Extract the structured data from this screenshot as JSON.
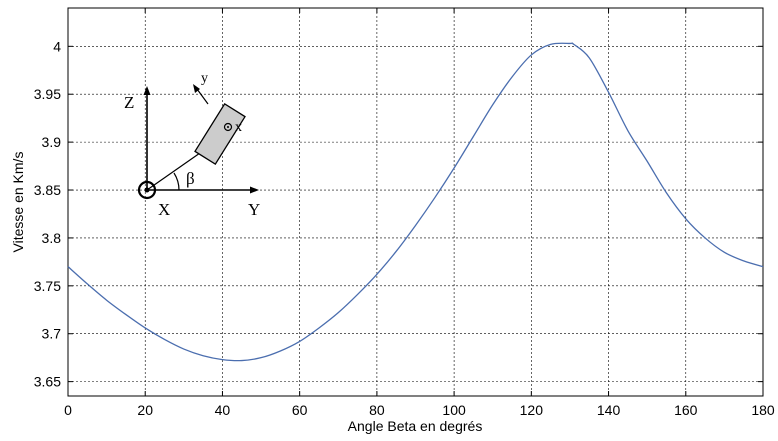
{
  "chart_data": {
    "type": "line",
    "title": "",
    "xlabel": "Angle Beta en degrés",
    "ylabel": "Vitesse en Km/s",
    "xlim": [
      0,
      180
    ],
    "ylim": [
      3.635,
      4.04
    ],
    "x_ticks": [
      0,
      20,
      40,
      60,
      80,
      100,
      120,
      140,
      160,
      180
    ],
    "x_tick_labels": [
      "0",
      "20",
      "40",
      "60",
      "80",
      "100",
      "120",
      "140",
      "160",
      "180"
    ],
    "y_ticks": [
      3.65,
      3.7,
      3.75,
      3.8,
      3.85,
      3.9,
      3.95,
      4.0
    ],
    "y_tick_labels": [
      "3.65",
      "3.7",
      "3.75",
      "3.8",
      "3.85",
      "3.9",
      "3.95",
      "4"
    ],
    "grid": true,
    "line_color": "#4b6eaf",
    "series": [
      {
        "x": [
          0,
          5,
          10,
          15,
          20,
          25,
          30,
          35,
          40,
          45,
          50,
          55,
          60,
          65,
          70,
          75,
          80,
          85,
          90,
          95,
          100,
          105,
          110,
          115,
          120,
          125,
          130,
          131,
          135,
          140,
          145,
          150,
          155,
          160,
          165,
          170,
          175,
          180
        ],
        "y": [
          3.77,
          3.752,
          3.735,
          3.72,
          3.706,
          3.694,
          3.684,
          3.677,
          3.673,
          3.672,
          3.675,
          3.682,
          3.692,
          3.706,
          3.722,
          3.741,
          3.762,
          3.786,
          3.813,
          3.842,
          3.873,
          3.906,
          3.939,
          3.968,
          3.991,
          4.002,
          4.003,
          4.002,
          3.988,
          3.952,
          3.912,
          3.88,
          3.847,
          3.82,
          3.8,
          3.785,
          3.776,
          3.77
        ]
      }
    ]
  },
  "inset": {
    "label_z": "Z",
    "label_y_axis": "Y",
    "label_x_axis": "X",
    "label_beta": "β",
    "label_body_y": "y",
    "label_body_x": "x"
  }
}
